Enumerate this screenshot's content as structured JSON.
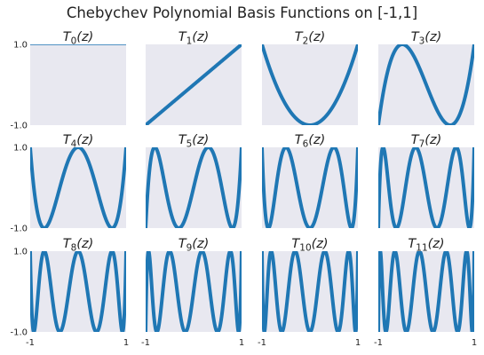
{
  "chart_data": {
    "type": "line",
    "title": "Chebychev Polynomial Basis Functions on [-1,1]",
    "grid": false,
    "line_color": "#1f77b4",
    "panel_background": "#e8e8f0",
    "xlim": [
      -1,
      1
    ],
    "ylim": [
      -1,
      1
    ],
    "x_ticks": [
      "-1",
      "1"
    ],
    "y_ticks": [
      "1.0",
      "-1.0"
    ],
    "panels": [
      {
        "title_main": "T",
        "title_sub": "0",
        "title_arg": "(z)",
        "degree": 0
      },
      {
        "title_main": "T",
        "title_sub": "1",
        "title_arg": "(z)",
        "degree": 1
      },
      {
        "title_main": "T",
        "title_sub": "2",
        "title_arg": "(z)",
        "degree": 2
      },
      {
        "title_main": "T",
        "title_sub": "3",
        "title_arg": "(z)",
        "degree": 3
      },
      {
        "title_main": "T",
        "title_sub": "4",
        "title_arg": "(z)",
        "degree": 4
      },
      {
        "title_main": "T",
        "title_sub": "5",
        "title_arg": "(z)",
        "degree": 5
      },
      {
        "title_main": "T",
        "title_sub": "6",
        "title_arg": "(z)",
        "degree": 6
      },
      {
        "title_main": "T",
        "title_sub": "7",
        "title_arg": "(z)",
        "degree": 7
      },
      {
        "title_main": "T",
        "title_sub": "8",
        "title_arg": "(z)",
        "degree": 8
      },
      {
        "title_main": "T",
        "title_sub": "9",
        "title_arg": "(z)",
        "degree": 9
      },
      {
        "title_main": "T",
        "title_sub": "10",
        "title_arg": "(z)",
        "degree": 10
      },
      {
        "title_main": "T",
        "title_sub": "11",
        "title_arg": "(z)",
        "degree": 11
      }
    ]
  }
}
